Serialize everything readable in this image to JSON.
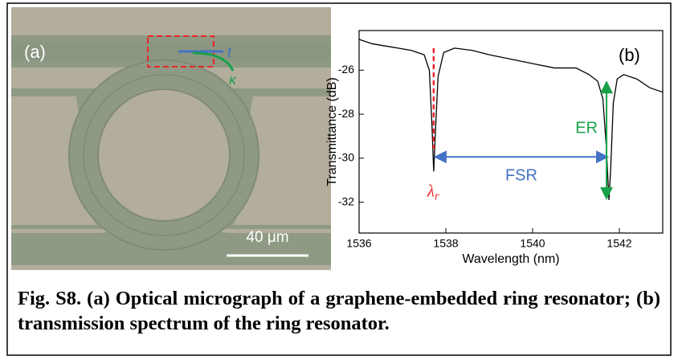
{
  "figure_a": {
    "label": "(a)",
    "scale_bar": "40 μm",
    "t": "t",
    "kappa": "κ"
  },
  "chart_data": {
    "type": "line",
    "panel_label": "(b)",
    "xlabel": "Wavelength (nm)",
    "ylabel": "Transmittance (dB)",
    "xlim": [
      1536,
      1543
    ],
    "ylim": [
      -33.4,
      -24.2
    ],
    "xticks": [
      1536,
      1538,
      1540,
      1542
    ],
    "yticks": [
      -32,
      -30,
      -28,
      -26
    ],
    "series": [
      {
        "color": "#000000",
        "x": [
          1536,
          1536.3,
          1536.6,
          1536.9,
          1537.2,
          1537.5,
          1537.62,
          1537.68,
          1537.72,
          1537.76,
          1537.82,
          1537.95,
          1538.2,
          1538.6,
          1539,
          1539.5,
          1540,
          1540.5,
          1541,
          1541.3,
          1541.5,
          1541.62,
          1541.7,
          1541.76,
          1541.8,
          1541.86,
          1541.95,
          1542.1,
          1542.4,
          1542.7,
          1543
        ],
        "values": [
          -24.6,
          -24.8,
          -24.9,
          -25.0,
          -25.1,
          -25.3,
          -26.0,
          -28.5,
          -30.6,
          -28.8,
          -26.3,
          -25.2,
          -25.0,
          -25.1,
          -25.3,
          -25.5,
          -25.7,
          -25.9,
          -25.9,
          -26.2,
          -26.5,
          -27.3,
          -29.5,
          -31.9,
          -30.5,
          -27.5,
          -26.4,
          -26.2,
          -26.4,
          -26.8,
          -27.0
        ]
      }
    ],
    "annotations": {
      "fsr": "FSR",
      "er": "ER",
      "lambda": "λ",
      "lambda_sub": "r"
    }
  },
  "caption": "Fig. S8. (a) Optical micrograph of a graphene-embedded ring resonator; (b) transmission spectrum of the ring resonator."
}
